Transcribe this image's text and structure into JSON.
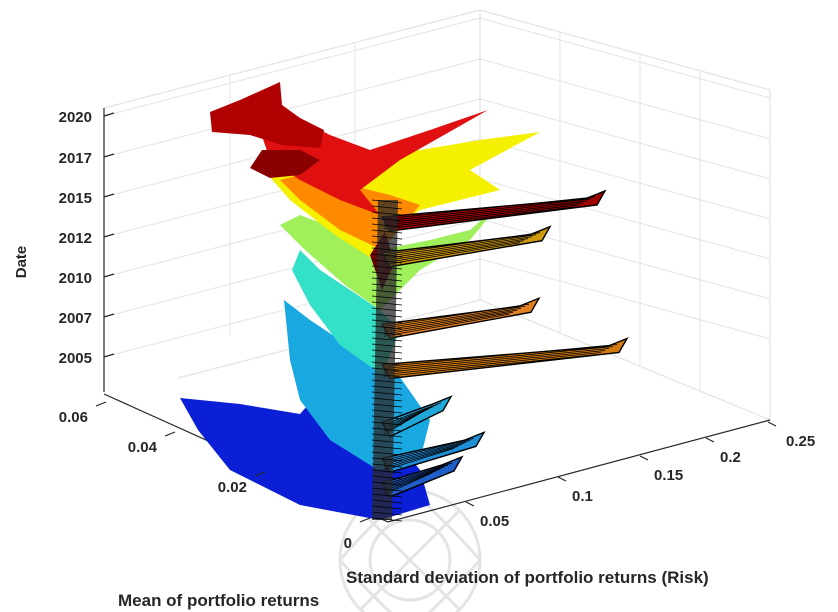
{
  "chart_data": {
    "type": "surface-3d",
    "title": "",
    "xlabel": "Standard deviation of portfolio returns (Risk)",
    "ylabel": "Mean of portfolio returns",
    "zlabel": "Date",
    "x_ticks": [
      "0.05",
      "0.1",
      "0.15",
      "0.2",
      "0.25"
    ],
    "y_ticks": [
      "0",
      "0.02",
      "0.04",
      "0.06"
    ],
    "z_ticks": [
      "2005",
      "2007",
      "2010",
      "2012",
      "2015",
      "2017",
      "2020"
    ],
    "xlim": [
      0,
      0.25
    ],
    "ylim": [
      0,
      0.06
    ],
    "zlim": [
      "2003",
      "2020"
    ],
    "grid": true,
    "colormap": [
      "#0a1fd6",
      "#1aa8e0",
      "#33e0c8",
      "#9ff05a",
      "#f5f000",
      "#ff8a00",
      "#e01010",
      "#b00000"
    ],
    "ridges": [
      {
        "date": "2004.3",
        "risk": 0.07,
        "mean": 0.0
      },
      {
        "date": "2005.4",
        "risk": 0.09,
        "mean": 0.0
      },
      {
        "date": "2007.0",
        "risk": 0.06,
        "mean": 0.0
      },
      {
        "date": "2009.6",
        "risk": 0.22,
        "mean": 0.0
      },
      {
        "date": "2011.4",
        "risk": 0.14,
        "mean": 0.0
      },
      {
        "date": "2014.6",
        "risk": 0.15,
        "mean": 0.0
      },
      {
        "date": "2016.2",
        "risk": 0.2,
        "mean": 0.0
      }
    ]
  }
}
